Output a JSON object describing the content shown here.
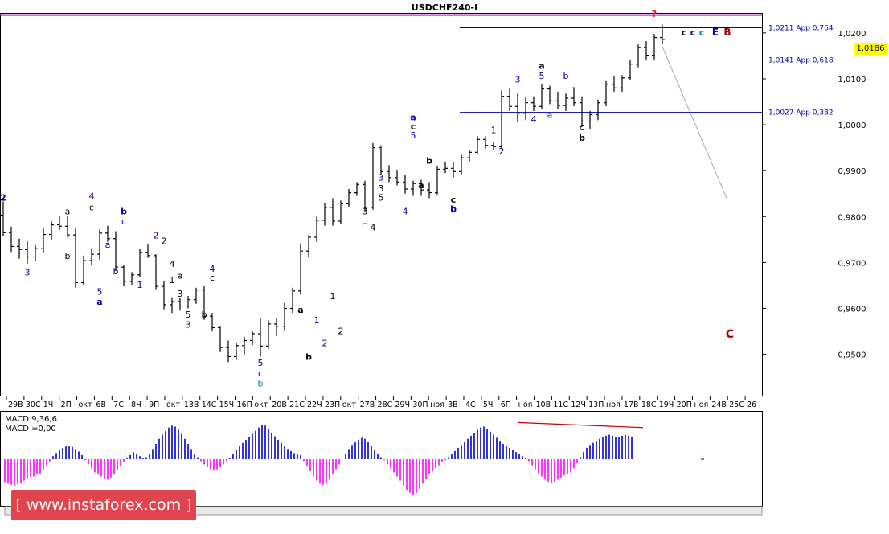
{
  "window": {
    "title": "USDCHF240-I"
  },
  "price_tag": "1,0186",
  "watermark": {
    "text": "[ www.instaforex.com ]"
  },
  "colors": {
    "candle": "#000000",
    "fib": "#0000a0",
    "top_line": "#d400d4",
    "macd_positive": "#0000cc",
    "macd_negative": "#ff00ff",
    "macd_signal": "#cc0000",
    "axis": "#000000",
    "price_tag": "#ffff00",
    "watermark": "#e0454f"
  },
  "chart_data": {
    "type": "candlestick",
    "title": "USDCHF240-I",
    "ylim": [
      0.941,
      1.024
    ],
    "yticks": [
      {
        "value": 1.02,
        "label": "1,0200"
      },
      {
        "value": 1.01,
        "label": "1,0100"
      },
      {
        "value": 1.0,
        "label": "1,0000"
      },
      {
        "value": 0.99,
        "label": "0,9900"
      },
      {
        "value": 0.98,
        "label": "0,9800"
      },
      {
        "value": 0.97,
        "label": "0,9700"
      },
      {
        "value": 0.96,
        "label": "0,9600"
      },
      {
        "value": 0.95,
        "label": "0,9500"
      }
    ],
    "xticks": [
      "29В",
      "30С",
      "1Ч",
      "2П",
      "окт",
      "6В",
      "7С",
      "8Ч",
      "9П",
      "окт",
      "13В",
      "14С",
      "15Ч",
      "16П",
      "окт",
      "20В",
      "21С",
      "22Ч",
      "23П",
      "окт",
      "27В",
      "28С",
      "29Ч",
      "30П",
      "ноя",
      "3В",
      "4С",
      "5Ч",
      "6П",
      "ноя",
      "10В",
      "11С",
      "12Ч",
      "13П",
      "ноя",
      "17В",
      "18С",
      "19Ч",
      "20П",
      "ноя",
      "24В",
      "25С",
      "26"
    ],
    "candles": [
      [
        0.9803,
        0.9833,
        0.9758,
        0.9765
      ],
      [
        0.9765,
        0.9778,
        0.9723,
        0.9735
      ],
      [
        0.9735,
        0.9752,
        0.9708,
        0.9728
      ],
      [
        0.9728,
        0.9746,
        0.9698,
        0.9712
      ],
      [
        0.9712,
        0.9738,
        0.9703,
        0.973
      ],
      [
        0.973,
        0.9775,
        0.9722,
        0.9761
      ],
      [
        0.9761,
        0.979,
        0.9748,
        0.9782
      ],
      [
        0.9782,
        0.98,
        0.9771,
        0.9779
      ],
      [
        0.9779,
        0.9801,
        0.9755,
        0.976
      ],
      [
        0.976,
        0.9776,
        0.9645,
        0.9656
      ],
      [
        0.9656,
        0.9715,
        0.965,
        0.9704
      ],
      [
        0.9704,
        0.9731,
        0.9695,
        0.9718
      ],
      [
        0.9718,
        0.9772,
        0.9706,
        0.9764
      ],
      [
        0.9764,
        0.978,
        0.9745,
        0.9752
      ],
      [
        0.9752,
        0.9768,
        0.9681,
        0.969
      ],
      [
        0.969,
        0.9695,
        0.9648,
        0.9659
      ],
      [
        0.9659,
        0.9679,
        0.9651,
        0.9673
      ],
      [
        0.9673,
        0.973,
        0.9668,
        0.9722
      ],
      [
        0.9722,
        0.974,
        0.971,
        0.9715
      ],
      [
        0.9715,
        0.9718,
        0.9642,
        0.9648
      ],
      [
        0.9648,
        0.966,
        0.9598,
        0.9608
      ],
      [
        0.9608,
        0.9624,
        0.959,
        0.9615
      ],
      [
        0.9615,
        0.9622,
        0.9595,
        0.9605
      ],
      [
        0.9605,
        0.9627,
        0.96,
        0.9619
      ],
      [
        0.9619,
        0.9645,
        0.961,
        0.964
      ],
      [
        0.964,
        0.9648,
        0.9575,
        0.9583
      ],
      [
        0.9583,
        0.959,
        0.955,
        0.9558
      ],
      [
        0.9558,
        0.9562,
        0.9505,
        0.9515
      ],
      [
        0.9515,
        0.953,
        0.9483,
        0.9495
      ],
      [
        0.9495,
        0.9525,
        0.9488,
        0.9519
      ],
      [
        0.9519,
        0.9538,
        0.95,
        0.953
      ],
      [
        0.953,
        0.9551,
        0.952,
        0.9545
      ],
      [
        0.9545,
        0.958,
        0.9495,
        0.9518
      ],
      [
        0.9518,
        0.9574,
        0.9512,
        0.9566
      ],
      [
        0.9566,
        0.9578,
        0.954,
        0.956
      ],
      [
        0.956,
        0.9612,
        0.9552,
        0.96
      ],
      [
        0.96,
        0.9645,
        0.959,
        0.9638
      ],
      [
        0.9638,
        0.9742,
        0.963,
        0.9725
      ],
      [
        0.9725,
        0.976,
        0.9712,
        0.9755
      ],
      [
        0.9755,
        0.98,
        0.9745,
        0.9792
      ],
      [
        0.9792,
        0.983,
        0.978,
        0.982
      ],
      [
        0.982,
        0.984,
        0.978,
        0.979
      ],
      [
        0.979,
        0.9835,
        0.9783,
        0.9828
      ],
      [
        0.9828,
        0.986,
        0.982,
        0.9852
      ],
      [
        0.9852,
        0.9875,
        0.9845,
        0.987
      ],
      [
        0.987,
        0.9878,
        0.9812,
        0.982
      ],
      [
        0.982,
        0.996,
        0.9815,
        0.995
      ],
      [
        0.995,
        0.9955,
        0.989,
        0.9898
      ],
      [
        0.9898,
        0.9912,
        0.9875,
        0.9885
      ],
      [
        0.9885,
        0.9902,
        0.9868,
        0.9875
      ],
      [
        0.9875,
        0.989,
        0.985,
        0.986
      ],
      [
        0.986,
        0.9878,
        0.9845,
        0.9872
      ],
      [
        0.9872,
        0.988,
        0.9845,
        0.9858
      ],
      [
        0.9858,
        0.9875,
        0.984,
        0.9852
      ],
      [
        0.9852,
        0.991,
        0.9848,
        0.9903
      ],
      [
        0.9903,
        0.992,
        0.9895,
        0.9905
      ],
      [
        0.9905,
        0.9918,
        0.9885,
        0.9898
      ],
      [
        0.9898,
        0.9935,
        0.989,
        0.9928
      ],
      [
        0.9928,
        0.9945,
        0.992,
        0.994
      ],
      [
        0.994,
        0.9975,
        0.9935,
        0.9968
      ],
      [
        0.9968,
        0.9975,
        0.9948,
        0.9955
      ],
      [
        0.9955,
        0.9962,
        0.9945,
        0.9952
      ],
      [
        0.9952,
        1.0075,
        0.9948,
        1.0062
      ],
      [
        1.0062,
        1.0078,
        1.003,
        1.004
      ],
      [
        1.004,
        1.0068,
        1.0005,
        1.0025
      ],
      [
        1.0025,
        1.006,
        1.001,
        1.0048
      ],
      [
        1.0048,
        1.0062,
        1.003,
        1.004
      ],
      [
        1.004,
        1.0088,
        1.0035,
        1.0078
      ],
      [
        1.0078,
        1.0085,
        1.0045,
        1.0052
      ],
      [
        1.0052,
        1.007,
        1.0035,
        1.0042
      ],
      [
        1.0042,
        1.0068,
        1.003,
        1.0058
      ],
      [
        1.0058,
        1.0082,
        1.004,
        1.0048
      ],
      [
        1.0048,
        1.0062,
        0.9995,
        1.0008
      ],
      [
        1.0008,
        1.003,
        0.999,
        1.0022
      ],
      [
        1.0022,
        1.0055,
        1.001,
        1.0048
      ],
      [
        1.0048,
        1.0095,
        1.004,
        1.0088
      ],
      [
        1.0088,
        1.0105,
        1.007,
        1.008
      ],
      [
        1.008,
        1.0108,
        1.0072,
        1.0102
      ],
      [
        1.0102,
        1.014,
        1.0098,
        1.0132
      ],
      [
        1.0132,
        1.0175,
        1.0125,
        1.0168
      ],
      [
        1.0168,
        1.0182,
        1.014,
        1.015
      ],
      [
        1.015,
        1.0198,
        1.014,
        1.019
      ],
      [
        1.019,
        1.0218,
        1.0175,
        1.0186
      ]
    ],
    "fib_levels": [
      {
        "value": 1.0211,
        "label": "1,0211 App 0,764"
      },
      {
        "value": 1.0141,
        "label": "1,0141 App 0,618"
      },
      {
        "value": 1.0027,
        "label": "1,0027 App 0,382"
      }
    ],
    "top_level": 1.0238,
    "projection": {
      "from": [
        82,
        1.017
      ],
      "to": [
        90,
        0.984
      ]
    },
    "wave_labels": [
      {
        "t": "2",
        "i": 0,
        "v": 0.9835,
        "c": "#0000a0",
        "b": true
      },
      {
        "t": "3",
        "i": 3,
        "v": 0.9672,
        "c": "#0000a0",
        "b": false
      },
      {
        "t": "a",
        "i": 8,
        "v": 0.9805,
        "c": "#000000",
        "b": false
      },
      {
        "t": "b",
        "i": 8,
        "v": 0.9708,
        "c": "#000000",
        "b": false
      },
      {
        "t": "4",
        "i": 11,
        "v": 0.9838,
        "c": "#0000a0",
        "b": false
      },
      {
        "t": "c",
        "i": 11,
        "v": 0.9814,
        "c": "#000000",
        "b": false
      },
      {
        "t": "5",
        "i": 12,
        "v": 0.963,
        "c": "#0000a0",
        "b": false
      },
      {
        "t": "a",
        "i": 12,
        "v": 0.9608,
        "c": "#0000a0",
        "b": true
      },
      {
        "t": "a",
        "i": 13,
        "v": 0.9732,
        "c": "#0000a0",
        "b": false
      },
      {
        "t": "b",
        "i": 14,
        "v": 0.9674,
        "c": "#0000a0",
        "b": false
      },
      {
        "t": "b",
        "i": 15,
        "v": 0.9805,
        "c": "#0000a0",
        "b": true
      },
      {
        "t": "c",
        "i": 15,
        "v": 0.9783,
        "c": "#0000a0",
        "b": false
      },
      {
        "t": "1",
        "i": 17,
        "v": 0.9645,
        "c": "#0000a0",
        "b": false
      },
      {
        "t": "2",
        "i": 19,
        "v": 0.9752,
        "c": "#0000a0",
        "b": false
      },
      {
        "t": "2",
        "i": 20,
        "v": 0.974,
        "c": "#000000",
        "b": false
      },
      {
        "t": "4",
        "i": 21,
        "v": 0.969,
        "c": "#000000",
        "b": false
      },
      {
        "t": "1",
        "i": 21,
        "v": 0.9655,
        "c": "#000000",
        "b": false
      },
      {
        "t": "a",
        "i": 22,
        "v": 0.9665,
        "c": "#000000",
        "b": false
      },
      {
        "t": "3",
        "i": 22,
        "v": 0.9625,
        "c": "#000000",
        "b": false
      },
      {
        "t": "5",
        "i": 23,
        "v": 0.958,
        "c": "#000000",
        "b": false
      },
      {
        "t": "3",
        "i": 23,
        "v": 0.9558,
        "c": "#0000a0",
        "b": false
      },
      {
        "t": "b",
        "i": 25,
        "v": 0.958,
        "c": "#000000",
        "b": false
      },
      {
        "t": "4",
        "i": 26,
        "v": 0.968,
        "c": "#0000a0",
        "b": false
      },
      {
        "t": "c",
        "i": 26,
        "v": 0.966,
        "c": "#000000",
        "b": false
      },
      {
        "t": "5",
        "i": 32,
        "v": 0.9475,
        "c": "#0000a0",
        "b": false
      },
      {
        "t": "c",
        "i": 32,
        "v": 0.9452,
        "c": "#0000a0",
        "b": false
      },
      {
        "t": "b",
        "i": 32,
        "v": 0.943,
        "c": "#0088aa",
        "b": false
      },
      {
        "t": "a",
        "i": 37,
        "v": 0.959,
        "c": "#000000",
        "b": true
      },
      {
        "t": "b",
        "i": 38,
        "v": 0.9488,
        "c": "#000000",
        "b": true
      },
      {
        "t": "1",
        "i": 39,
        "v": 0.9568,
        "c": "#0000a0",
        "b": false
      },
      {
        "t": "2",
        "i": 40,
        "v": 0.9518,
        "c": "#0000a0",
        "b": false
      },
      {
        "t": "1",
        "i": 41,
        "v": 0.962,
        "c": "#000000",
        "b": false
      },
      {
        "t": "2",
        "i": 42,
        "v": 0.9544,
        "c": "#000000",
        "b": false
      },
      {
        "t": "3",
        "i": 45,
        "v": 0.9805,
        "c": "#000000",
        "b": false
      },
      {
        "t": "H",
        "i": 45,
        "v": 0.9778,
        "c": "#cc00cc",
        "b": false
      },
      {
        "t": "4",
        "i": 46,
        "v": 0.977,
        "c": "#000000",
        "b": false
      },
      {
        "t": "3",
        "i": 47,
        "v": 0.9878,
        "c": "#0000a0",
        "b": false
      },
      {
        "t": "3",
        "i": 47,
        "v": 0.9855,
        "c": "#000000",
        "b": false
      },
      {
        "t": "5",
        "i": 47,
        "v": 0.9835,
        "c": "#000000",
        "b": false
      },
      {
        "t": "4",
        "i": 50,
        "v": 0.9805,
        "c": "#0000a0",
        "b": false
      },
      {
        "t": "a",
        "i": 51,
        "v": 1.001,
        "c": "#0000a0",
        "b": true
      },
      {
        "t": "c",
        "i": 51,
        "v": 0.999,
        "c": "#000000",
        "b": true
      },
      {
        "t": "5",
        "i": 51,
        "v": 0.997,
        "c": "#0000a0",
        "b": false
      },
      {
        "t": "b",
        "i": 53,
        "v": 0.9915,
        "c": "#000000",
        "b": true
      },
      {
        "t": "a",
        "i": 52,
        "v": 0.9862,
        "c": "#000000",
        "b": true
      },
      {
        "t": "c",
        "i": 56,
        "v": 0.983,
        "c": "#000000",
        "b": true
      },
      {
        "t": "b",
        "i": 56,
        "v": 0.981,
        "c": "#0000a0",
        "b": true
      },
      {
        "t": "1",
        "i": 61,
        "v": 0.9982,
        "c": "#0000a0",
        "b": false
      },
      {
        "t": "2",
        "i": 62,
        "v": 0.9935,
        "c": "#0000a0",
        "b": false
      },
      {
        "t": "3",
        "i": 64,
        "v": 1.0092,
        "c": "#0000a0",
        "b": false
      },
      {
        "t": "5",
        "i": 67,
        "v": 1.01,
        "c": "#0000a0",
        "b": false
      },
      {
        "t": "a",
        "i": 67,
        "v": 1.0122,
        "c": "#000000",
        "b": true
      },
      {
        "t": "4",
        "i": 66,
        "v": 1.0005,
        "c": "#0000a0",
        "b": false
      },
      {
        "t": "a",
        "i": 68,
        "v": 1.0015,
        "c": "#0000a0",
        "b": false
      },
      {
        "t": "b",
        "i": 70,
        "v": 1.01,
        "c": "#0000a0",
        "b": false
      },
      {
        "t": "c",
        "i": 72,
        "v": 0.9988,
        "c": "#000000",
        "b": false
      },
      {
        "t": "b",
        "i": 72,
        "v": 0.9965,
        "c": "#000000",
        "b": true
      },
      {
        "t": "?",
        "i": 81,
        "v": 1.0235,
        "c": "#ff0000",
        "b": true
      }
    ],
    "right_labels": [
      {
        "t": "c",
        "x": 851,
        "y": 44,
        "c": "#000000",
        "s": 11
      },
      {
        "t": "c",
        "x": 862,
        "y": 44,
        "c": "#0000a0",
        "s": 11
      },
      {
        "t": "c",
        "x": 873,
        "y": 44,
        "c": "#0088aa",
        "s": 11
      },
      {
        "t": "E",
        "x": 890,
        "y": 44,
        "c": "#0000cc",
        "s": 12
      },
      {
        "t": "B",
        "x": 905,
        "y": 44,
        "c": "#990000",
        "s": 12
      },
      {
        "t": "C",
        "x": 908,
        "y": 420,
        "c": "#990000",
        "s": 14
      }
    ],
    "macd": {
      "label": "MACD 9,36,6",
      "value_label": "MACD =0,00",
      "ylim": [
        -0.009,
        0.009
      ],
      "values": [
        -0.0045,
        -0.0048,
        -0.005,
        -0.0052,
        -0.0049,
        -0.0046,
        -0.0042,
        -0.0038,
        -0.0035,
        -0.0034,
        -0.003,
        -0.0028,
        -0.002,
        -0.0012,
        -0.0004,
        0.0006,
        0.0012,
        0.0018,
        0.0022,
        0.0025,
        0.0026,
        0.0024,
        0.002,
        0.0015,
        0.0008,
        -0.0002,
        -0.001,
        -0.0018,
        -0.0026,
        -0.003,
        -0.0034,
        -0.0038,
        -0.004,
        -0.0036,
        -0.003,
        -0.0022,
        -0.0014,
        -0.0006,
        0.0002,
        0.0008,
        0.0014,
        0.001,
        0.0006,
        0.0002,
        0.0004,
        0.001,
        0.002,
        0.003,
        0.004,
        0.0048,
        0.0055,
        0.0062,
        0.0066,
        0.0064,
        0.0058,
        0.005,
        0.004,
        0.003,
        0.002,
        0.001,
        0.0004,
        -0.0004,
        -0.001,
        -0.0016,
        -0.002,
        -0.0022,
        -0.002,
        -0.0016,
        -0.001,
        -0.0004,
        0.0002,
        0.001,
        0.0018,
        0.0025,
        0.0032,
        0.0038,
        0.0044,
        0.005,
        0.0056,
        0.0062,
        0.0068,
        0.0066,
        0.006,
        0.0052,
        0.0045,
        0.0038,
        0.0032,
        0.0026,
        0.002,
        0.0016,
        0.0012,
        0.001,
        0.0008,
        -0.0004,
        -0.0014,
        -0.0024,
        -0.0034,
        -0.0042,
        -0.0048,
        -0.005,
        -0.0046,
        -0.004,
        -0.003,
        -0.002,
        -0.001,
        0.0,
        0.001,
        0.002,
        0.0028,
        0.0034,
        0.0038,
        0.0042,
        0.004,
        0.0034,
        0.0026,
        0.0018,
        0.001,
        0.0004,
        -0.0002,
        -0.001,
        -0.0018,
        -0.0026,
        -0.0034,
        -0.0042,
        -0.0052,
        -0.006,
        -0.0066,
        -0.007,
        -0.0066,
        -0.0058,
        -0.0048,
        -0.0038,
        -0.003,
        -0.0024,
        -0.0018,
        -0.0012,
        -0.0006,
        -0.0002,
        0.0004,
        0.001,
        0.0016,
        0.0022,
        0.0028,
        0.0034,
        0.004,
        0.0046,
        0.0052,
        0.0058,
        0.0062,
        0.0064,
        0.006,
        0.0054,
        0.0048,
        0.0042,
        0.0036,
        0.003,
        0.0026,
        0.0022,
        0.0018,
        0.0014,
        0.001,
        0.0006,
        0.0002,
        -0.0004,
        -0.0012,
        -0.002,
        -0.0028,
        -0.0034,
        -0.004,
        -0.0044,
        -0.0046,
        -0.0044,
        -0.004,
        -0.0036,
        -0.0032,
        -0.003,
        -0.0026,
        -0.0018,
        -0.0008,
        0.0004,
        0.0014,
        0.0022,
        0.0028,
        0.0032,
        0.0036,
        0.004,
        0.0044,
        0.0046,
        0.0048,
        0.0046,
        0.0044,
        0.0044,
        0.0046,
        0.0048,
        0.0046,
        0.0044
      ],
      "signal_from": [
        0.0072,
        0.0
      ],
      "signal_to": [
        0.0062,
        0.0
      ]
    }
  }
}
